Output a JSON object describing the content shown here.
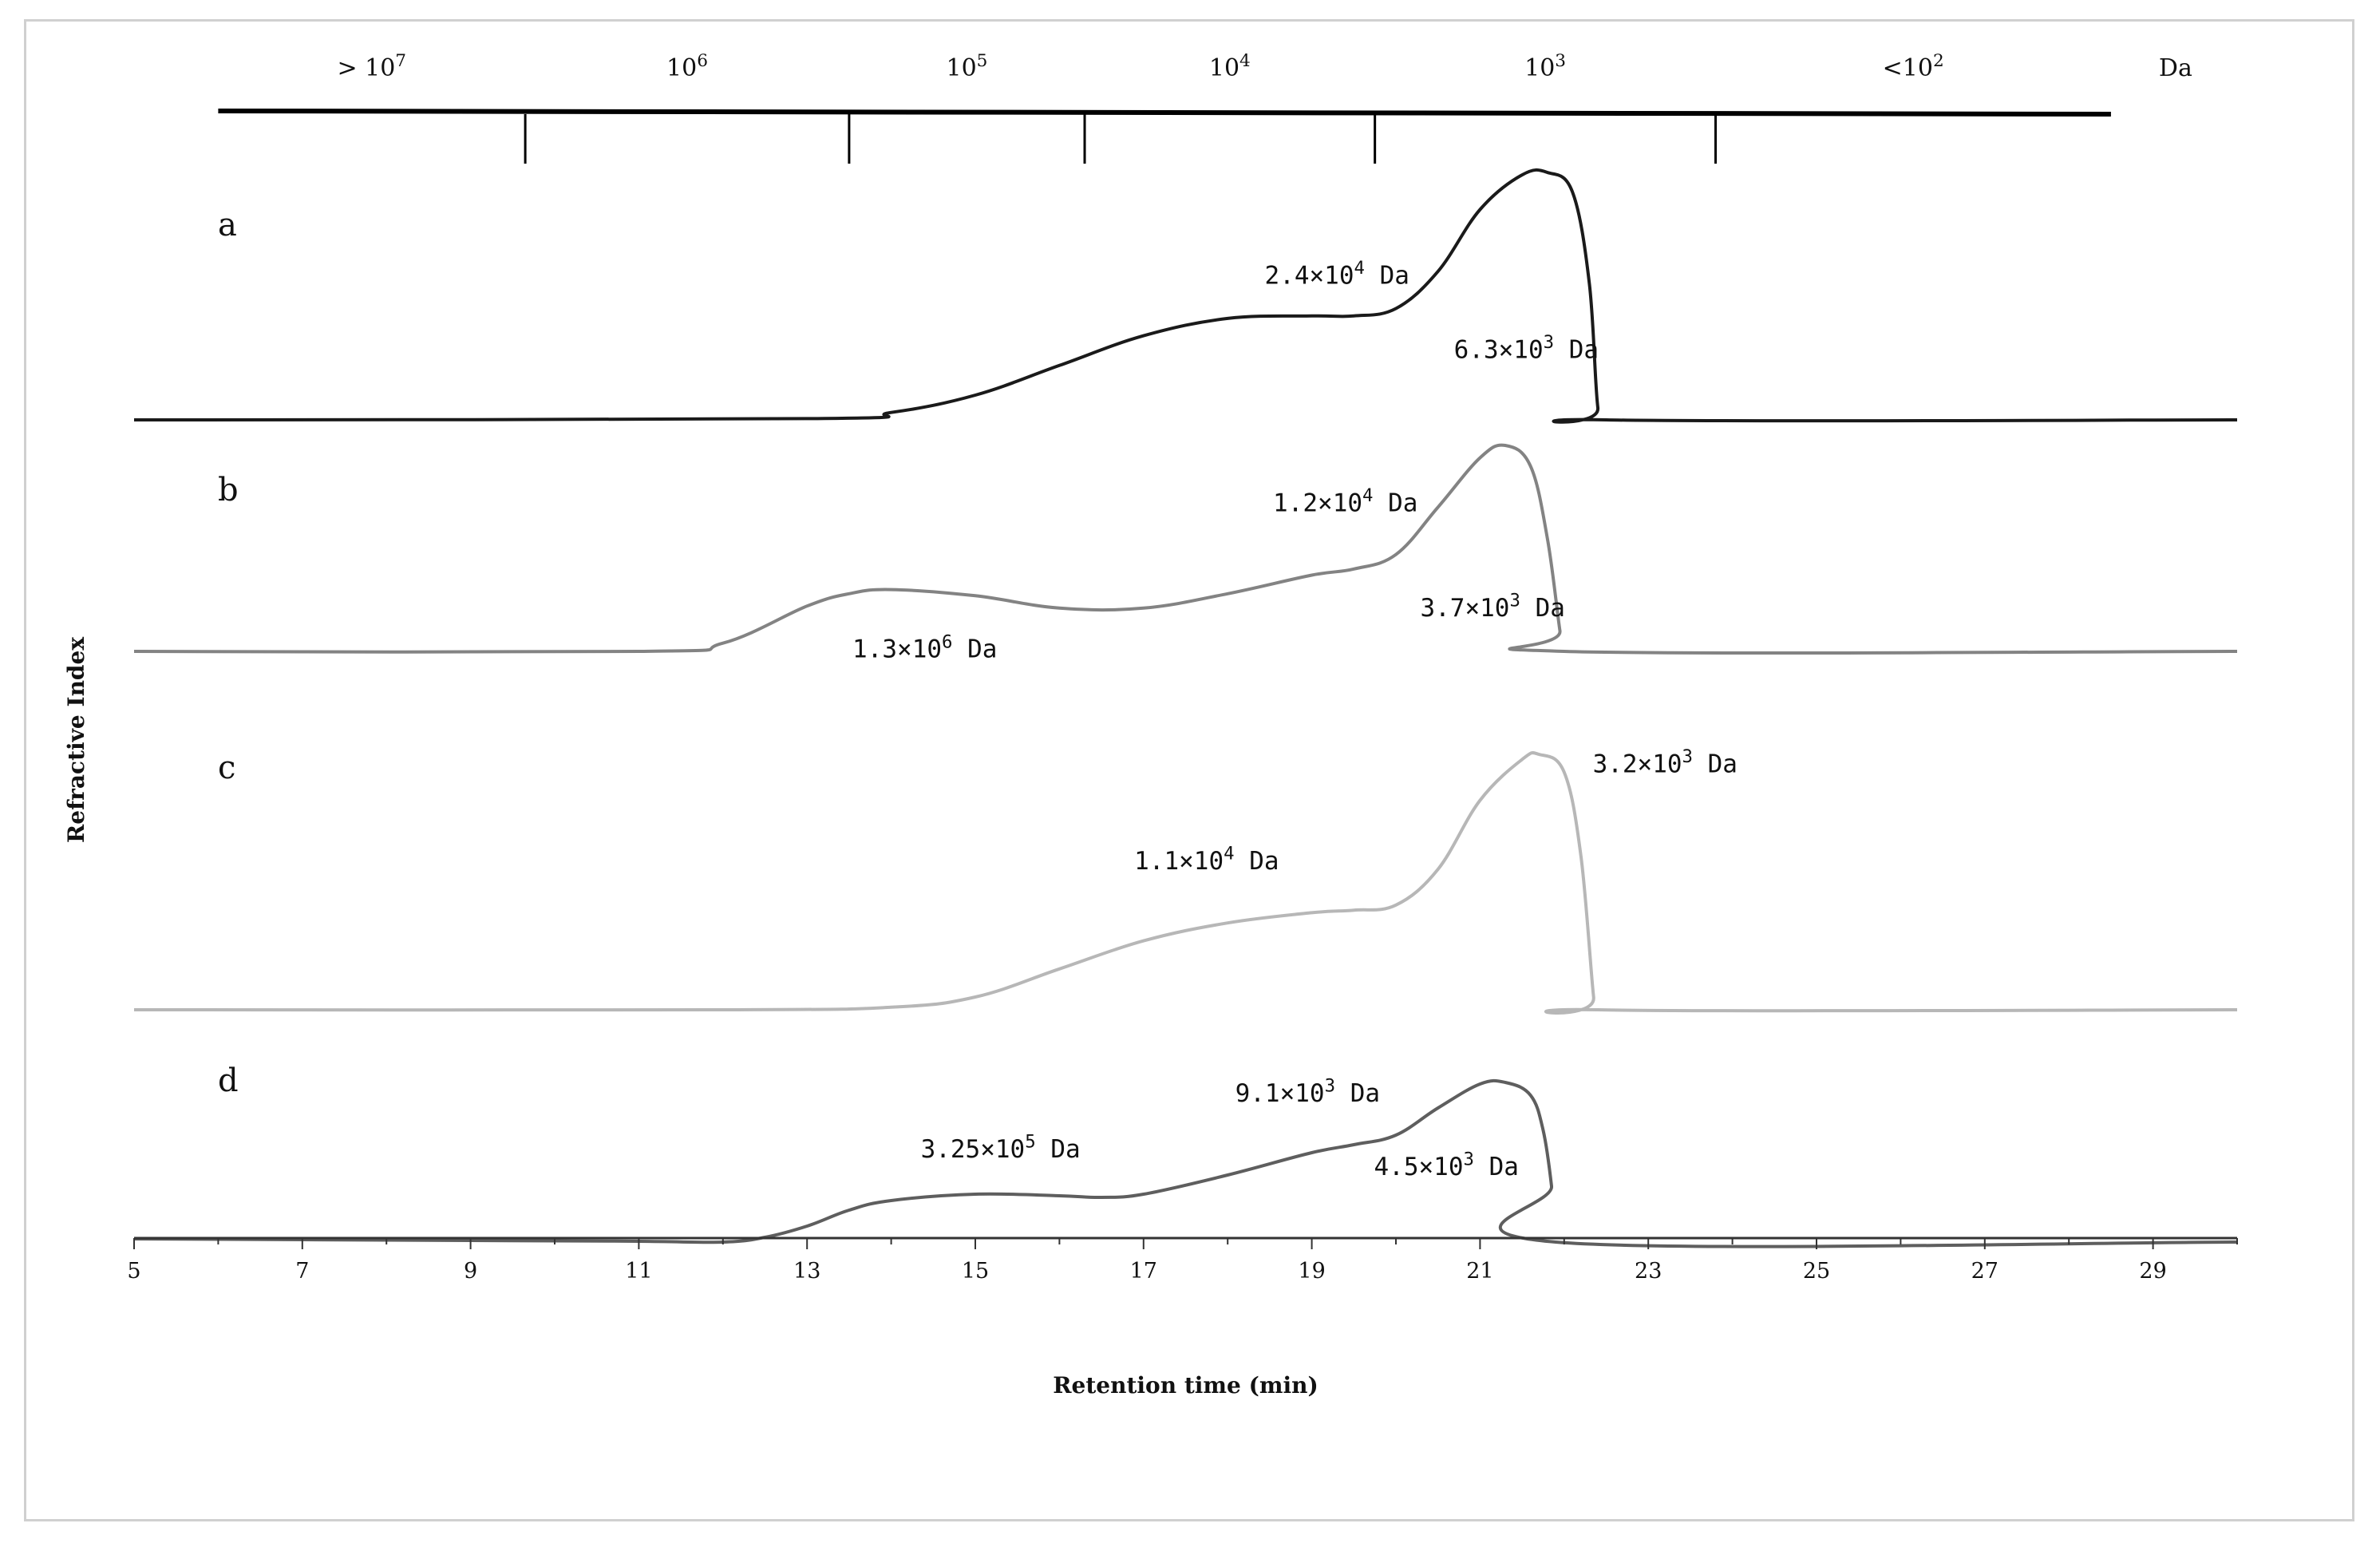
{
  "chart_data": {
    "type": "line",
    "xlabel": "Retention time (min)",
    "ylabel": "Refractive Index",
    "xlim": [
      5,
      30
    ],
    "xticks": [
      5,
      7,
      9,
      11,
      13,
      15,
      17,
      19,
      21,
      23,
      25,
      27,
      29
    ],
    "grid": false,
    "legend": "none",
    "mw_scale": {
      "unit": "Da",
      "boundaries_min": [
        9.65,
        13.5,
        16.3,
        19.75,
        23.8
      ],
      "range_min": [
        6,
        28.5
      ],
      "segments": [
        {
          "base": "> 10",
          "exp": "7",
          "from_min": 6,
          "to_min": 9.65
        },
        {
          "base": "10",
          "exp": "6",
          "from_min": 9.65,
          "to_min": 13.5
        },
        {
          "base": "10",
          "exp": "5",
          "from_min": 13.5,
          "to_min": 16.3
        },
        {
          "base": "10",
          "exp": "4",
          "from_min": 16.3,
          "to_min": 19.75
        },
        {
          "base": "10",
          "exp": "3",
          "from_min": 19.75,
          "to_min": 23.8
        },
        {
          "base": "<10",
          "exp": "2",
          "from_min": 23.8,
          "to_min": 28.5
        }
      ]
    },
    "series": [
      {
        "name": "a",
        "color": "#1a1a1a",
        "baseline_y": 0,
        "y_max": 1.0,
        "x": [
          5,
          13,
          14,
          15,
          16,
          17,
          18,
          19,
          19.5,
          20,
          20.5,
          21,
          21.5,
          21.8,
          22.1,
          22.3,
          22.4,
          22.5,
          30
        ],
        "y": [
          0,
          0.005,
          0.03,
          0.1,
          0.22,
          0.34,
          0.41,
          0.42,
          0.42,
          0.45,
          0.6,
          0.85,
          0.99,
          1.0,
          0.92,
          0.55,
          0.05,
          0,
          0
        ],
        "annotations": [
          {
            "base": "2.4×10",
            "exp": "4",
            "suffix": " Da",
            "x": 19.3,
            "y": 0.55
          },
          {
            "base": "6.3×10",
            "exp": "3",
            "suffix": " Da",
            "x": 21.55,
            "y": 0.25
          }
        ]
      },
      {
        "name": "b",
        "color": "#838383",
        "baseline_y": 0,
        "y_max": 1.0,
        "x": [
          5,
          11,
          12,
          13,
          13.5,
          14,
          15,
          16,
          17,
          18,
          19,
          19.5,
          20,
          20.5,
          21,
          21.3,
          21.6,
          21.8,
          21.95,
          22,
          30
        ],
        "y": [
          0,
          0,
          0.04,
          0.22,
          0.28,
          0.3,
          0.27,
          0.21,
          0.21,
          0.28,
          0.37,
          0.4,
          0.47,
          0.7,
          0.94,
          1.0,
          0.9,
          0.55,
          0.1,
          0,
          0
        ],
        "annotations": [
          {
            "base": "1.2×10",
            "exp": "4",
            "suffix": " Da",
            "x": 19.4,
            "y": 0.68
          },
          {
            "base": "3.7×10",
            "exp": "3",
            "suffix": " Da",
            "x": 21.15,
            "y": 0.17
          },
          {
            "base": "1.3×10",
            "exp": "6",
            "suffix": " Da",
            "x": 14.4,
            "y": -0.03
          }
        ]
      },
      {
        "name": "c",
        "color": "#b7b7b7",
        "baseline_y": 0,
        "y_max": 1.0,
        "x": [
          5,
          12,
          14,
          15,
          16,
          17,
          18,
          19,
          19.5,
          20,
          20.5,
          21,
          21.5,
          21.7,
          22,
          22.2,
          22.35,
          22.4,
          30
        ],
        "y": [
          0,
          0,
          0.01,
          0.05,
          0.16,
          0.27,
          0.34,
          0.38,
          0.39,
          0.41,
          0.55,
          0.82,
          0.98,
          1.0,
          0.93,
          0.6,
          0.05,
          0,
          0
        ],
        "annotations": [
          {
            "base": "3.2×10",
            "exp": "3",
            "suffix": " Da",
            "x": 23.2,
            "y": 0.93
          },
          {
            "base": "1.1×10",
            "exp": "4",
            "suffix": " Da",
            "x": 17.75,
            "y": 0.55
          }
        ]
      },
      {
        "name": "d",
        "color": "#5e5e5e",
        "baseline_y": 0.02,
        "y_max": 1.0,
        "x": [
          5,
          9,
          11,
          12,
          12.5,
          13,
          13.5,
          14,
          15,
          16,
          16.5,
          17,
          18,
          19,
          19.5,
          20,
          20.5,
          21,
          21.3,
          21.6,
          21.75,
          21.85,
          21.9,
          30
        ],
        "y": [
          0.02,
          0.01,
          0.005,
          0,
          0.03,
          0.1,
          0.2,
          0.26,
          0.3,
          0.29,
          0.28,
          0.3,
          0.42,
          0.56,
          0.61,
          0.67,
          0.84,
          0.99,
          1.0,
          0.92,
          0.7,
          0.35,
          0,
          0
        ],
        "annotations": [
          {
            "base": "9.1×10",
            "exp": "3",
            "suffix": " Da",
            "x": 18.95,
            "y": 0.88
          },
          {
            "base": "3.25×10",
            "exp": "5",
            "suffix": " Da",
            "x": 15.3,
            "y": 0.53
          },
          {
            "base": "4.5×10",
            "exp": "3",
            "suffix": " Da",
            "x": 20.6,
            "y": 0.42
          }
        ]
      }
    ]
  }
}
